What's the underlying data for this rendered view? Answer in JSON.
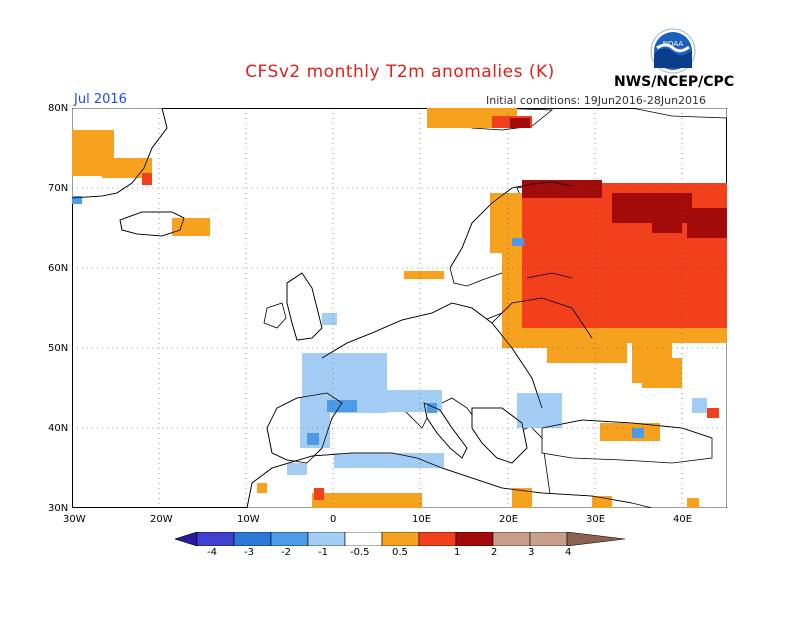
{
  "header": {
    "title": "CFSv2 monthly T2m anomalies (K)",
    "agency": "NWS/NCEP/CPC",
    "logo_text": "NOAA",
    "month": "Jul 2016",
    "initial_conditions": "Initial conditions: 19Jun2016-28Jun2016"
  },
  "axes": {
    "lat_labels": [
      "80N",
      "70N",
      "60N",
      "50N",
      "40N",
      "30N"
    ],
    "lon_labels": [
      "30W",
      "20W",
      "10W",
      "0",
      "10E",
      "20E",
      "30E",
      "40E"
    ]
  },
  "legend": {
    "labels": [
      "-4",
      "-3",
      "-2",
      "-1",
      "-0.5",
      "0.5",
      "1",
      "2",
      "3",
      "4"
    ],
    "colors": [
      "#2a1a9e",
      "#3f3fd0",
      "#2a78d8",
      "#4b9be6",
      "#a3cdf5",
      "#ffffff",
      "#f6a21e",
      "#f2401c",
      "#a30a0a",
      "#c8a08a",
      "#8c6250"
    ]
  },
  "colors": {
    "title": "#e0201b",
    "month_label": "#1f4fd8",
    "warm_0_5_1": "#f6a21e",
    "warm_1_2": "#f2401c",
    "warm_2_3": "#a30a0a",
    "cool_m1_m0_5": "#a3cdf5",
    "cool_m2_m1": "#4b9be6"
  }
}
